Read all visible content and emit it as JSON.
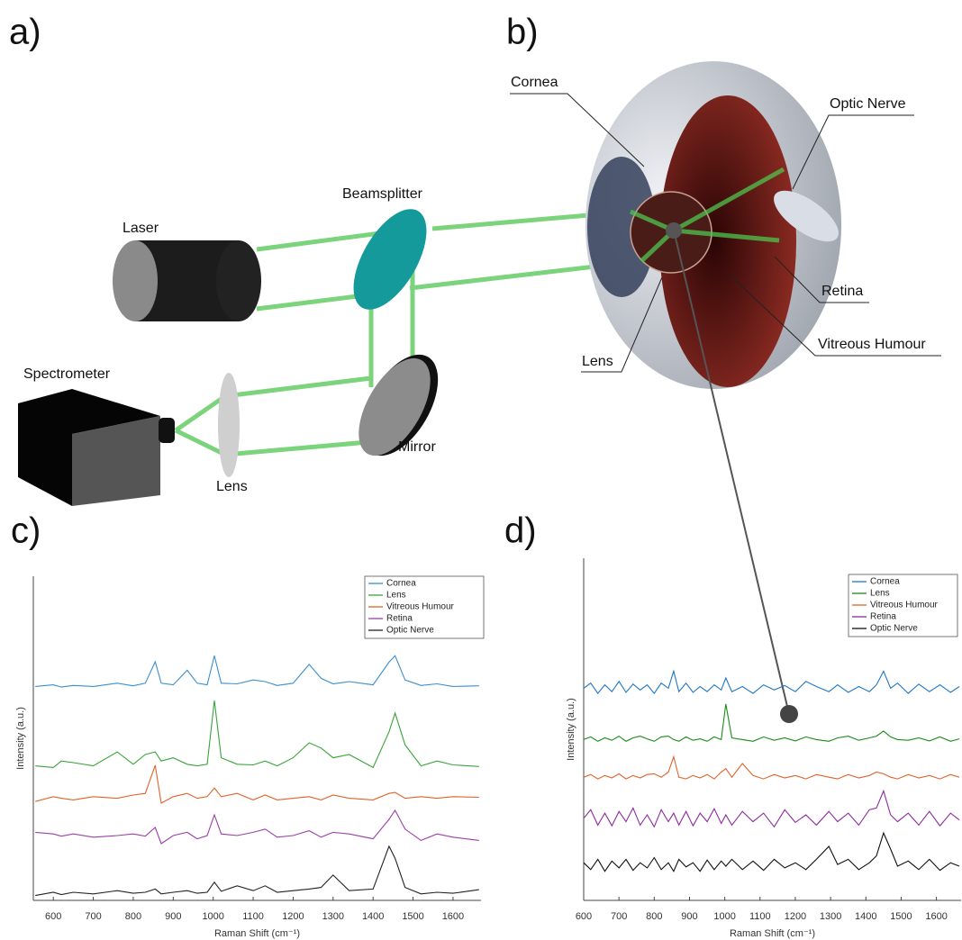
{
  "figure": {
    "panels": [
      "a)",
      "b)"
    ],
    "setup_labels": [
      "Laser",
      "Beamsplitter",
      "Spectrometer",
      "Lens",
      "Mirror"
    ],
    "eye_labels": [
      "Cornea",
      "Optic Nerve",
      "Retina",
      "Vitreous Humour",
      "Lens"
    ]
  },
  "chart_data": [
    {
      "type": "line",
      "title": "c)",
      "x_label": "Raman Shift (cm⁻¹)",
      "y_label": "Intensity (a.u.)",
      "xlim": [
        550,
        1670
      ],
      "ylim": [
        0,
        100
      ],
      "xticks": [
        600,
        700,
        800,
        900,
        1000,
        1100,
        1200,
        1300,
        1400,
        1500,
        1600
      ],
      "legend": "upper right",
      "x": [
        555,
        600,
        620,
        650,
        700,
        760,
        800,
        830,
        855,
        870,
        900,
        935,
        960,
        985,
        1003,
        1020,
        1060,
        1100,
        1130,
        1160,
        1200,
        1240,
        1270,
        1300,
        1340,
        1400,
        1440,
        1455,
        1480,
        1520,
        1560,
        1600,
        1665
      ],
      "series": [
        {
          "name": "Cornea",
          "color": "#3a8fd0",
          "values": [
            66,
            66.5,
            65.8,
            66.3,
            66,
            67,
            66.2,
            67,
            73.6,
            67,
            66.5,
            71,
            67,
            66.5,
            75.5,
            67,
            66.8,
            68,
            67.5,
            66.3,
            67,
            72.8,
            68.5,
            66.8,
            67.5,
            66.5,
            73.5,
            75.5,
            68,
            66.3,
            66.8,
            66,
            66.2
          ]
        },
        {
          "name": "Lens",
          "color": "#3aa33a",
          "values": [
            41.5,
            41,
            43,
            42.5,
            41.5,
            45.8,
            42,
            45,
            45.8,
            43,
            44,
            42,
            41.5,
            42,
            61.7,
            44,
            42,
            41.8,
            43,
            41.5,
            44,
            48.6,
            47,
            44,
            45,
            41,
            52,
            57.8,
            48,
            41.5,
            43,
            41.8,
            41.3
          ]
        },
        {
          "name": "Vitreous Humour",
          "color": "#e0622a",
          "values": [
            30.5,
            32,
            31.5,
            31,
            32,
            31.5,
            32.5,
            33,
            41.7,
            30,
            32,
            33,
            31.5,
            32,
            34.7,
            32,
            33,
            31,
            32.5,
            31,
            31.5,
            32,
            31,
            32.5,
            31.5,
            31,
            33,
            33.3,
            31.5,
            32,
            31.5,
            32,
            31.8
          ]
        },
        {
          "name": "Retina",
          "color": "#9b3fa8",
          "values": [
            21,
            20.5,
            19.8,
            20.5,
            19.5,
            20,
            20.5,
            19.8,
            22.5,
            17.5,
            20,
            21,
            19,
            20,
            26.4,
            20.5,
            20,
            21,
            22,
            19.5,
            20,
            21.5,
            19.5,
            21,
            20.5,
            19,
            25,
            27.8,
            22,
            18.5,
            20.5,
            19.5,
            18.5
          ]
        },
        {
          "name": "Optic Nerve",
          "color": "#222222",
          "values": [
            1.5,
            2.5,
            1.8,
            2.5,
            2,
            3,
            2.2,
            2.5,
            3.5,
            2,
            2.5,
            3,
            2.2,
            2.5,
            5.6,
            2.8,
            4.5,
            3,
            4.5,
            2.5,
            3,
            3.5,
            4,
            7.8,
            3,
            3.5,
            16.7,
            13,
            4,
            2,
            2.5,
            2.2,
            3.3
          ]
        }
      ]
    },
    {
      "type": "line",
      "title": "d)",
      "x_label": "Raman Shift (cm⁻¹)",
      "y_label": "Intensity (a.u.)",
      "xlim": [
        600,
        1670
      ],
      "ylim": [
        0,
        100
      ],
      "xticks": [
        600,
        700,
        800,
        900,
        1000,
        1100,
        1200,
        1300,
        1400,
        1500,
        1600
      ],
      "legend": "upper right",
      "x": [
        600,
        620,
        640,
        660,
        680,
        700,
        720,
        740,
        760,
        780,
        800,
        820,
        840,
        855,
        870,
        890,
        910,
        930,
        950,
        970,
        990,
        1003,
        1020,
        1050,
        1080,
        1110,
        1140,
        1170,
        1200,
        1230,
        1260,
        1295,
        1320,
        1350,
        1380,
        1410,
        1430,
        1450,
        1470,
        1490,
        1520,
        1550,
        1580,
        1610,
        1640,
        1665
      ],
      "series": [
        {
          "name": "Cornea",
          "color": "#1f77c4",
          "values": [
            62,
            63.5,
            60.5,
            63,
            61,
            64,
            60.8,
            63.2,
            61.5,
            63,
            60.5,
            63.5,
            62,
            67,
            61,
            63.5,
            60.8,
            62.5,
            61,
            63,
            61.5,
            65,
            61,
            62.5,
            60.5,
            63,
            61.5,
            62.8,
            61,
            64,
            62.5,
            61,
            63,
            60.8,
            62.5,
            61,
            63,
            67,
            62,
            63.5,
            60.5,
            63.2,
            61,
            63,
            60.8,
            62.5
          ]
        },
        {
          "name": "Lens",
          "color": "#1a8a1a",
          "values": [
            47,
            47.8,
            46.5,
            47.5,
            46.8,
            48,
            46.5,
            47.5,
            48,
            47.2,
            46.5,
            47.8,
            48,
            47,
            46.5,
            47.8,
            46.8,
            47.2,
            46.5,
            47.8,
            47,
            57.4,
            47.5,
            47,
            46.5,
            47.8,
            46.8,
            47.5,
            46.6,
            47.8,
            47,
            46.5,
            47.5,
            48,
            46.8,
            47.5,
            48,
            49.5,
            47.8,
            47,
            46.8,
            47.5,
            46.6,
            47.8,
            46.5,
            47.2
          ]
        },
        {
          "name": "Vitreous Humour",
          "color": "#e0622a",
          "values": [
            36,
            36.8,
            35.5,
            36.5,
            35.8,
            37,
            35.5,
            36.5,
            35.8,
            36.8,
            37,
            36,
            37.5,
            42,
            36,
            35.5,
            36.5,
            35.8,
            36.8,
            35.5,
            37.5,
            38.5,
            36,
            40,
            36.5,
            35.5,
            36.8,
            35.8,
            36.5,
            35.5,
            36.8,
            36,
            35.5,
            36.8,
            35.8,
            36.5,
            37.5,
            37,
            36,
            35.5,
            36.8,
            35.8,
            36.5,
            35.5,
            36.8,
            36
          ]
        },
        {
          "name": "Retina",
          "color": "#8e2a9e",
          "values": [
            24,
            26.5,
            22,
            25.5,
            21.8,
            26,
            23,
            27,
            22,
            25,
            21.5,
            26.5,
            23,
            25.5,
            22,
            26,
            21.8,
            25.5,
            23,
            26.8,
            22.5,
            25,
            22,
            26,
            23,
            25.5,
            21.5,
            26.5,
            22.8,
            25,
            22,
            26,
            23,
            25.5,
            22,
            26.5,
            27,
            32,
            25,
            23,
            25.5,
            22,
            26,
            21.8,
            25.5,
            23.5
          ]
        },
        {
          "name": "Optic Nerve",
          "color": "#111111",
          "values": [
            11,
            9,
            12,
            8.5,
            11.5,
            9.5,
            12,
            8.8,
            11,
            9.5,
            12.5,
            9,
            11,
            8.5,
            12,
            9.8,
            11,
            8.5,
            11.8,
            9,
            11.5,
            10,
            12,
            9,
            11.5,
            8.8,
            12,
            9.5,
            11,
            9,
            12,
            15.8,
            10.5,
            12,
            9,
            11,
            13,
            19.7,
            15,
            10,
            11.5,
            9,
            12,
            8.8,
            11,
            10
          ]
        }
      ]
    }
  ]
}
